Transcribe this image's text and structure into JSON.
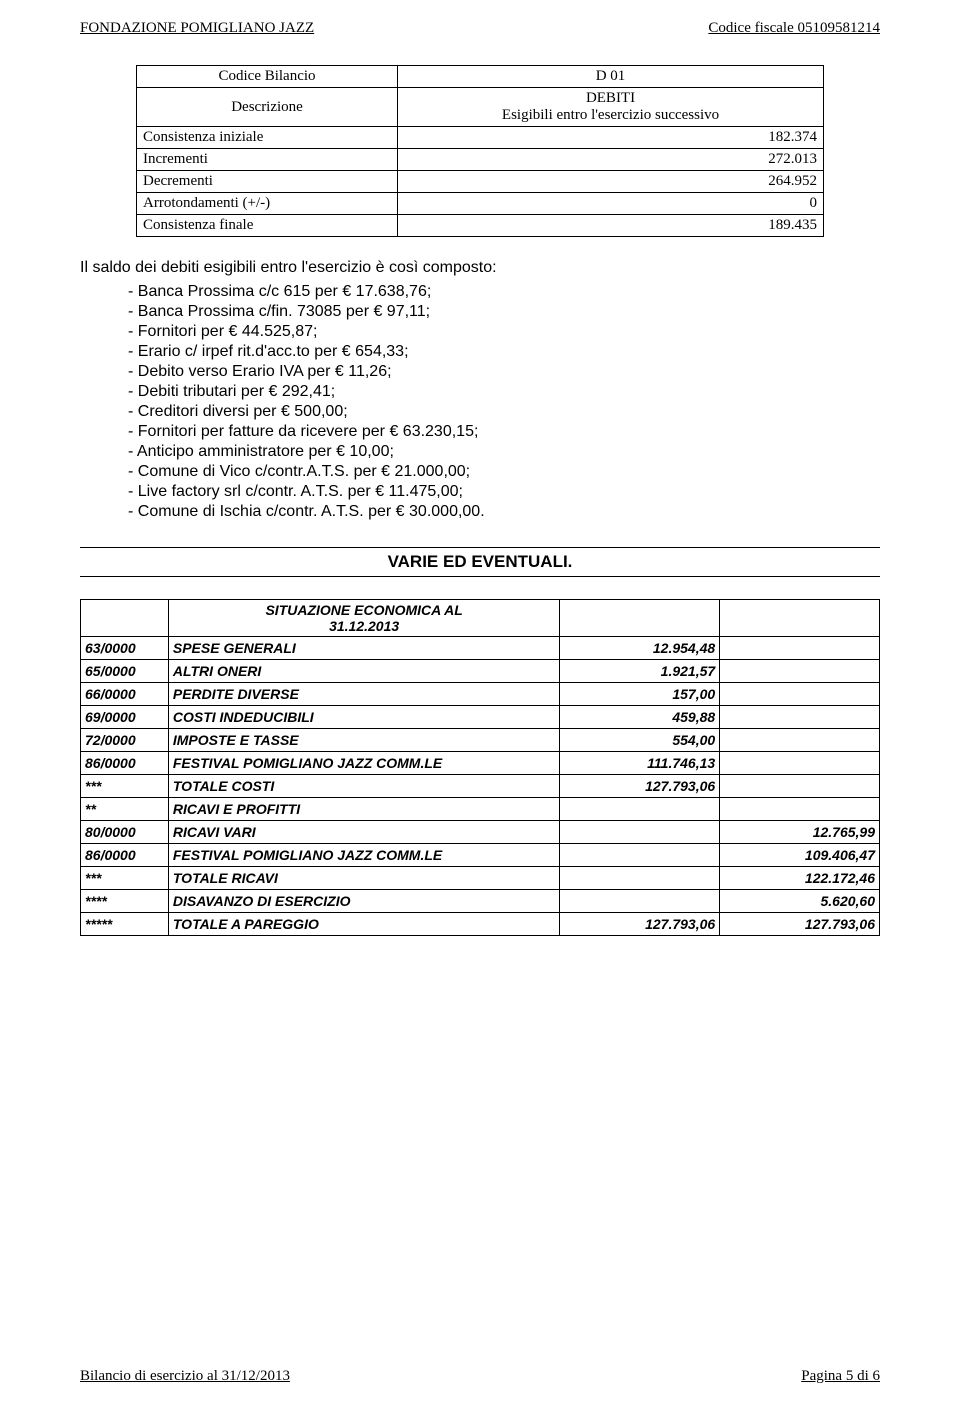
{
  "header": {
    "left": "FONDAZIONE POMIGLIANO JAZZ",
    "right": "Codice fiscale 05109581214"
  },
  "codice_table": {
    "row1_label": "Codice Bilancio",
    "row1_value": "D     01",
    "row2_label": "Descrizione",
    "row2_line1": "DEBITI",
    "row2_line2": "Esigibili entro l'esercizio successivo",
    "rows": [
      {
        "label": "Consistenza iniziale",
        "value": "182.374"
      },
      {
        "label": "Incrementi",
        "value": "272.013"
      },
      {
        "label": "Decrementi",
        "value": "264.952"
      },
      {
        "label": "Arrotondamenti (+/-)",
        "value": "0"
      },
      {
        "label": "Consistenza finale",
        "value": "189.435"
      }
    ]
  },
  "intro_para": "Il saldo dei debiti esigibili entro l'esercizio è così composto:",
  "debiti_list": [
    "Banca Prossima c/c 615 per € 17.638,76;",
    "Banca Prossima c/fin. 73085 per € 97,11;",
    "Fornitori per € 44.525,87;",
    "Erario c/ irpef rit.d'acc.to per € 654,33;",
    "Debito verso Erario IVA per € 11,26;",
    "Debiti tributari per € 292,41;",
    "Creditori diversi per € 500,00;",
    "Fornitori per fatture da ricevere per € 63.230,15;",
    "Anticipo amministratore per € 10,00;",
    "Comune di Vico c/contr.A.T.S.   per € 21.000,00;",
    "Live factory srl c/contr. A.T.S. per € 11.475,00;",
    "Comune di Ischia c/contr. A.T.S. per € 30.000,00."
  ],
  "section_title": "VARIE ED EVENTUALI.",
  "econ": {
    "header_line1": "SITUAZIONE ECONOMICA AL",
    "header_line2": "31.12.2013",
    "rows": [
      {
        "c0": "63/0000",
        "c1": "SPESE GENERALI",
        "c2": "12.954,48",
        "c3": ""
      },
      {
        "c0": "65/0000",
        "c1": "ALTRI ONERI",
        "c2": "1.921,57",
        "c3": ""
      },
      {
        "c0": "66/0000",
        "c1": "PERDITE DIVERSE",
        "c2": "157,00",
        "c3": ""
      },
      {
        "c0": "69/0000",
        "c1": "COSTI INDEDUCIBILI",
        "c2": "459,88",
        "c3": ""
      },
      {
        "c0": "72/0000",
        "c1": "IMPOSTE E TASSE",
        "c2": "554,00",
        "c3": ""
      },
      {
        "c0": "86/0000",
        "c1": "FESTIVAL POMIGLIANO JAZZ COMM.LE",
        "c2": "111.746,13",
        "c3": ""
      },
      {
        "c0": "***",
        "c1": "TOTALE COSTI",
        "c2": "127.793,06",
        "c3": ""
      },
      {
        "c0": "**",
        "c1": "RICAVI E PROFITTI",
        "c2": "",
        "c3": ""
      },
      {
        "c0": "80/0000",
        "c1": "RICAVI VARI",
        "c2": "",
        "c3": "12.765,99"
      },
      {
        "c0": "86/0000",
        "c1": "FESTIVAL POMIGLIANO JAZZ COMM.LE",
        "c2": "",
        "c3": "109.406,47"
      },
      {
        "c0": "***",
        "c1": "TOTALE RICAVI",
        "c2": "",
        "c3": "122.172,46"
      },
      {
        "c0": "****",
        "c1": "DISAVANZO  DI ESERCIZIO",
        "c2": "",
        "c3": "5.620,60"
      },
      {
        "c0": "*****",
        "c1": "TOTALE A PAREGGIO",
        "c2": "127.793,06",
        "c3": "127.793,06"
      }
    ]
  },
  "footer": {
    "left": "Bilancio di esercizio al 31/12/2013",
    "right": "Pagina 5 di 6"
  }
}
